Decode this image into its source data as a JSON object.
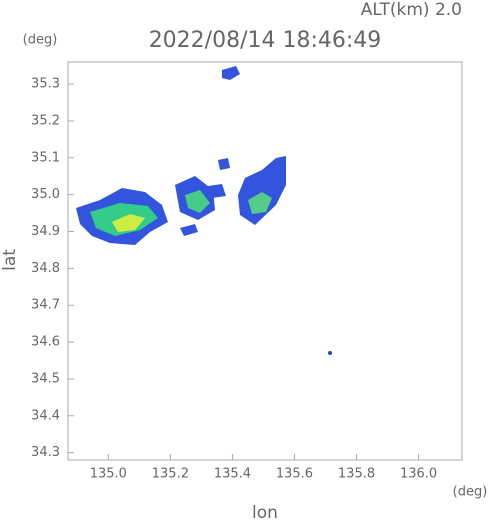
{
  "chart_data": {
    "type": "map",
    "title": "2022/08/14 18:46:49",
    "subtitle": "ALT(km)  2.0",
    "x_label": "lon",
    "y_label": "lat",
    "x_unit": "(deg)",
    "y_unit": "(deg)",
    "xlim": [
      134.87,
      136.14
    ],
    "ylim": [
      34.28,
      35.36
    ],
    "xticks": [
      {
        "value": 135.0,
        "label": "135.0"
      },
      {
        "value": 135.2,
        "label": "135.2"
      },
      {
        "value": 135.4,
        "label": "135.4"
      },
      {
        "value": 135.6,
        "label": "135.6"
      },
      {
        "value": 135.8,
        "label": "135.8"
      },
      {
        "value": 136.0,
        "label": "136.0"
      }
    ],
    "yticks": [
      {
        "value": 34.3,
        "label": "34.3"
      },
      34.4,
      34.5,
      34.6,
      34.7,
      34.8,
      34.9,
      {
        "value": 35.0,
        "label": "35.0"
      },
      35.1,
      35.2,
      35.3
    ]
  }
}
